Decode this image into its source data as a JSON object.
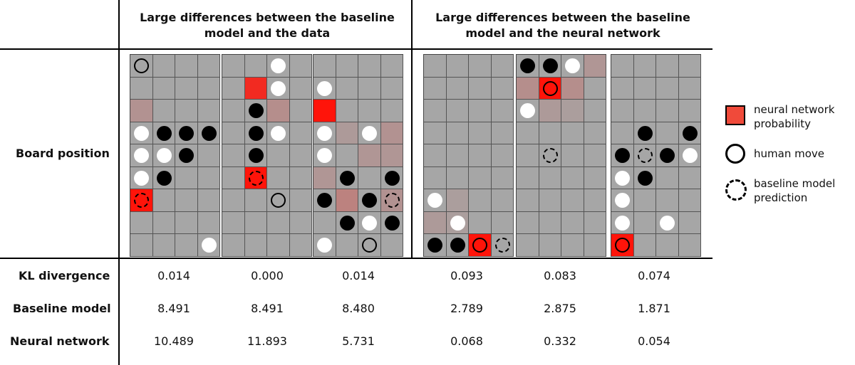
{
  "headers": {
    "group1": "Large differences between the baseline model and the data",
    "group2": "Large differences between the baseline model and the neural network"
  },
  "rows": {
    "board": "Board position",
    "kl": "KL divergence",
    "baseline": "Baseline model",
    "nn": "Neural network"
  },
  "legend": {
    "nn_prob": "neural network probability",
    "human": "human move",
    "baseline": "baseline model prediction",
    "nn_color": "#f04a3a"
  },
  "colors": {
    "board": "#a6a6a6",
    "prob_strong": "#ff0000",
    "prob_light": "#b89696"
  },
  "boards": [
    {
      "prob": [
        [
          2,
          0,
          0.25
        ],
        [
          6,
          0,
          1
        ]
      ],
      "black": [
        [
          3,
          1
        ],
        [
          3,
          2
        ],
        [
          3,
          3
        ],
        [
          4,
          2
        ],
        [
          5,
          1
        ]
      ],
      "white": [
        [
          3,
          0
        ],
        [
          4,
          0
        ],
        [
          4,
          1
        ],
        [
          5,
          0
        ],
        [
          8,
          3
        ]
      ],
      "human": [
        [
          0,
          0
        ]
      ],
      "baseline": [
        [
          6,
          0
        ]
      ]
    },
    {
      "prob": [
        [
          1,
          1,
          0.85
        ],
        [
          2,
          2,
          0.3
        ],
        [
          5,
          1,
          1
        ]
      ],
      "black": [
        [
          2,
          1
        ],
        [
          3,
          1
        ],
        [
          4,
          1
        ]
      ],
      "white": [
        [
          0,
          2
        ],
        [
          1,
          2
        ],
        [
          3,
          2
        ]
      ],
      "human": [
        [
          6,
          2
        ]
      ],
      "baseline": [
        [
          5,
          1
        ]
      ]
    },
    {
      "prob": [
        [
          2,
          0,
          1
        ],
        [
          3,
          1,
          0.15
        ],
        [
          3,
          3,
          0.25
        ],
        [
          4,
          2,
          0.2
        ],
        [
          4,
          3,
          0.2
        ],
        [
          5,
          0,
          0.2
        ],
        [
          6,
          1,
          0.45
        ],
        [
          6,
          3,
          0.25
        ]
      ],
      "black": [
        [
          5,
          1
        ],
        [
          5,
          3
        ],
        [
          6,
          0
        ],
        [
          6,
          2
        ],
        [
          7,
          1
        ],
        [
          7,
          3
        ]
      ],
      "white": [
        [
          1,
          0
        ],
        [
          3,
          0
        ],
        [
          3,
          2
        ],
        [
          4,
          0
        ],
        [
          7,
          2
        ],
        [
          8,
          0
        ]
      ],
      "human": [
        [
          8,
          2
        ]
      ],
      "baseline": [
        [
          6,
          3
        ]
      ]
    },
    {
      "prob": [
        [
          6,
          1,
          0.1
        ],
        [
          7,
          0,
          0.15
        ],
        [
          7,
          1,
          0.1
        ],
        [
          8,
          2,
          1
        ]
      ],
      "black": [
        [
          8,
          0
        ],
        [
          8,
          1
        ]
      ],
      "white": [
        [
          6,
          0
        ],
        [
          7,
          1
        ]
      ],
      "human": [
        [
          8,
          2
        ]
      ],
      "baseline": [
        [
          8,
          3
        ]
      ]
    },
    {
      "prob": [
        [
          0,
          3,
          0.2
        ],
        [
          1,
          0,
          0.3
        ],
        [
          1,
          1,
          1
        ],
        [
          1,
          2,
          0.3
        ],
        [
          2,
          1,
          0.15
        ],
        [
          2,
          2,
          0.1
        ]
      ],
      "black": [
        [
          0,
          0
        ],
        [
          0,
          1
        ]
      ],
      "white": [
        [
          0,
          2
        ],
        [
          2,
          0
        ]
      ],
      "human": [
        [
          1,
          1
        ]
      ],
      "baseline": [
        [
          4,
          1
        ]
      ]
    },
    {
      "prob": [
        [
          8,
          0,
          1
        ]
      ],
      "black": [
        [
          3,
          1
        ],
        [
          3,
          3
        ],
        [
          4,
          0
        ],
        [
          4,
          2
        ],
        [
          5,
          1
        ]
      ],
      "white": [
        [
          4,
          3
        ],
        [
          5,
          0
        ],
        [
          6,
          0
        ],
        [
          7,
          0
        ],
        [
          7,
          2
        ]
      ],
      "human": [
        [
          8,
          0
        ]
      ],
      "baseline": [
        [
          4,
          1
        ]
      ]
    }
  ],
  "values": {
    "kl": [
      "0.014",
      "0.000",
      "0.014",
      "0.093",
      "0.083",
      "0.074"
    ],
    "baseline": [
      "8.491",
      "8.491",
      "8.480",
      "2.789",
      "2.875",
      "1.871"
    ],
    "nn": [
      "10.489",
      "11.893",
      "5.731",
      "0.068",
      "0.332",
      "0.054"
    ]
  }
}
